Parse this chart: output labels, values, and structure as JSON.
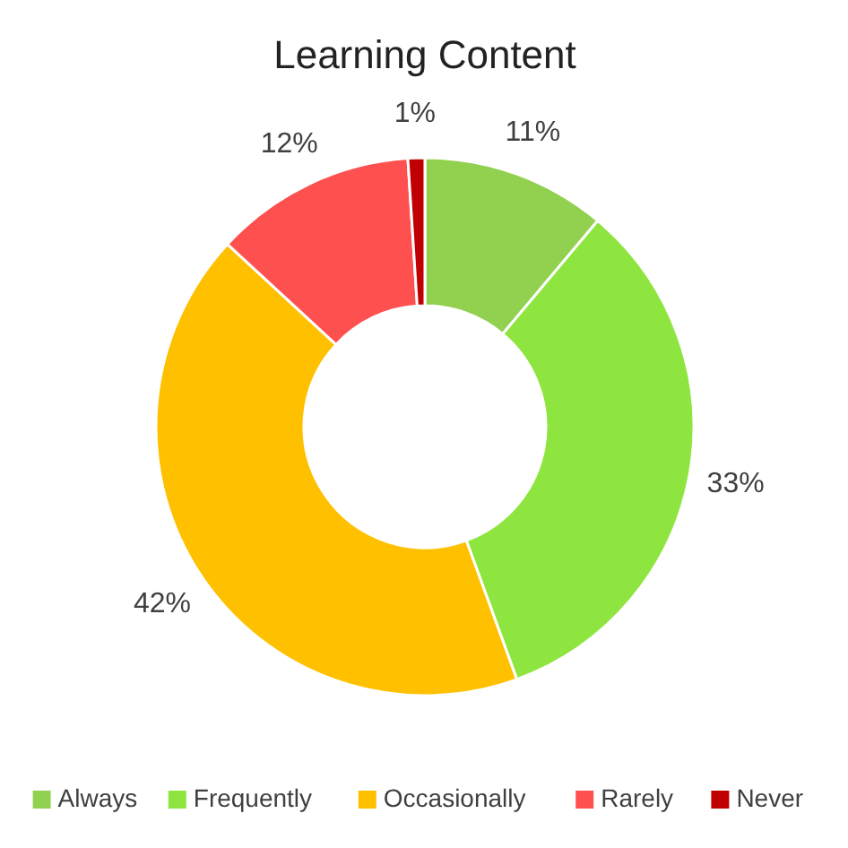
{
  "chart_data": {
    "type": "donut",
    "title": "Learning Content",
    "categories": [
      "Always",
      "Frequently",
      "Occasionally",
      "Rarely",
      "Never"
    ],
    "values": [
      11,
      33,
      42,
      12,
      1
    ],
    "colors": [
      "#92d050",
      "#8ee53f",
      "#ffc000",
      "#ff5050",
      "#c00000"
    ],
    "value_labels": [
      "11%",
      "33%",
      "42%",
      "12%",
      "1%"
    ],
    "legend": "bottom"
  }
}
